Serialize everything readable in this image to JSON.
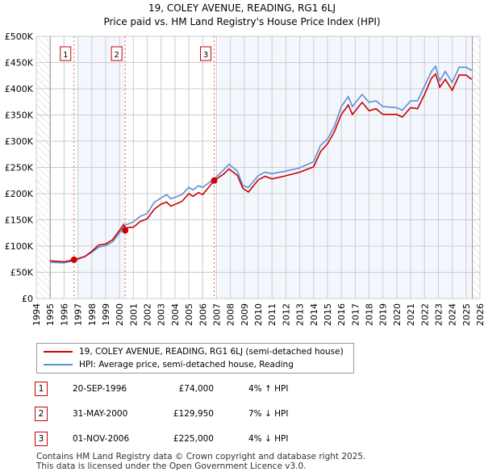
{
  "chart_data": {
    "type": "line",
    "title": "19, COLEY AVENUE, READING, RG1 6LJ",
    "subtitle": "Price paid vs. HM Land Registry's House Price Index (HPI)",
    "xlim": [
      1994,
      2026
    ],
    "ylim": [
      0,
      500000
    ],
    "x_ticks": [
      "1994",
      "1995",
      "1996",
      "1997",
      "1998",
      "1999",
      "2000",
      "2001",
      "2002",
      "2003",
      "2004",
      "2005",
      "2006",
      "2007",
      "2008",
      "2009",
      "2010",
      "2011",
      "2012",
      "2013",
      "2014",
      "2015",
      "2016",
      "2017",
      "2018",
      "2019",
      "2020",
      "2021",
      "2022",
      "2023",
      "2024",
      "2025",
      "2026"
    ],
    "y_ticks": [
      {
        "v": 0,
        "label": "£0"
      },
      {
        "v": 50000,
        "label": "£50K"
      },
      {
        "v": 100000,
        "label": "£100K"
      },
      {
        "v": 150000,
        "label": "£150K"
      },
      {
        "v": 200000,
        "label": "£200K"
      },
      {
        "v": 250000,
        "label": "£250K"
      },
      {
        "v": 300000,
        "label": "£300K"
      },
      {
        "v": 350000,
        "label": "£350K"
      },
      {
        "v": 400000,
        "label": "£400K"
      },
      {
        "v": 450000,
        "label": "£450K"
      },
      {
        "v": 500000,
        "label": "£500K"
      }
    ],
    "grid": true,
    "series": [
      {
        "name": "19, COLEY AVENUE, READING, RG1 6LJ (semi-detached house)",
        "color": "#cc0000",
        "x": [
          1995,
          1996,
          1996.72,
          1997.5,
          1998,
          1998.5,
          1999,
          1999.5,
          2000,
          2000.3,
          2000.41,
          2001,
          2001.5,
          2002,
          2002.5,
          2003,
          2003.4,
          2003.7,
          2004.5,
          2005,
          2005.3,
          2005.7,
          2006,
          2006.83,
          2007.5,
          2007.9,
          2008.5,
          2008.9,
          2009.3,
          2010,
          2010.5,
          2011,
          2012,
          2013,
          2014,
          2014.5,
          2015,
          2015.5,
          2016,
          2016.5,
          2016.8,
          2017.5,
          2018,
          2018.5,
          2019,
          2020,
          2020.4,
          2021,
          2021.5,
          2022,
          2022.5,
          2022.8,
          2023.1,
          2023.5,
          2024,
          2024.5,
          2025,
          2025.4
        ],
        "y": [
          72000,
          70000,
          74000,
          80000,
          90000,
          102000,
          104000,
          112000,
          130000,
          141000,
          135000,
          136000,
          147000,
          152000,
          170000,
          180000,
          184000,
          176000,
          185000,
          200000,
          195000,
          202000,
          198000,
          225000,
          237000,
          247000,
          235000,
          210000,
          203000,
          226000,
          233000,
          228000,
          234000,
          241000,
          251000,
          280000,
          295000,
          318000,
          351000,
          369000,
          351000,
          374000,
          358000,
          362000,
          351000,
          351000,
          346000,
          364000,
          362000,
          389000,
          420000,
          428000,
          403000,
          418000,
          397000,
          426000,
          426000,
          418000
        ]
      },
      {
        "name": "HPI: Average price, semi-detached house, Reading",
        "color": "#5b8fd4",
        "x": [
          1995,
          1996,
          1996.72,
          1997.5,
          1998,
          1998.5,
          1999,
          1999.5,
          2000,
          2000.41,
          2001,
          2001.5,
          2002,
          2002.5,
          2003,
          2003.4,
          2003.7,
          2004.5,
          2005,
          2005.3,
          2005.7,
          2006,
          2006.83,
          2007.5,
          2007.9,
          2008.5,
          2008.9,
          2009.3,
          2010,
          2010.5,
          2011,
          2012,
          2013,
          2014,
          2014.5,
          2015,
          2015.5,
          2016,
          2016.5,
          2016.8,
          2017.5,
          2018,
          2018.5,
          2019,
          2020,
          2020.4,
          2021,
          2021.5,
          2022,
          2022.5,
          2022.8,
          2023.1,
          2023.5,
          2024,
          2024.5,
          2025,
          2025.4
        ],
        "y": [
          69000,
          68000,
          72000,
          80000,
          88000,
          98000,
          101000,
          108000,
          125000,
          140000,
          146000,
          157000,
          162000,
          183000,
          192000,
          198000,
          190000,
          198000,
          212000,
          207000,
          215000,
          212000,
          228000,
          245000,
          256000,
          243000,
          215000,
          212000,
          234000,
          241000,
          238000,
          243000,
          249000,
          261000,
          292000,
          304000,
          328000,
          366000,
          385000,
          366000,
          389000,
          374000,
          377000,
          366000,
          364000,
          359000,
          377000,
          377000,
          405000,
          433000,
          443000,
          415000,
          433000,
          412000,
          441000,
          441000,
          435000
        ]
      }
    ],
    "sales": [
      {
        "n": "1",
        "x": 1996.72,
        "price": 74000,
        "date": "20-SEP-1996",
        "price_label": "£74,000",
        "hpi": "4% ↑ HPI"
      },
      {
        "n": "2",
        "x": 2000.41,
        "price": 129950,
        "date": "31-MAY-2000",
        "price_label": "£129,950",
        "hpi": "7% ↓ HPI"
      },
      {
        "n": "3",
        "x": 2006.83,
        "price": 225000,
        "date": "01-NOV-2006",
        "price_label": "£225,000",
        "hpi": "4% ↓ HPI"
      }
    ],
    "data_end": 2025.45
  },
  "footer": {
    "line1": "Contains HM Land Registry data © Crown copyright and database right 2025.",
    "line2": "This data is licensed under the Open Government Licence v3.0."
  }
}
